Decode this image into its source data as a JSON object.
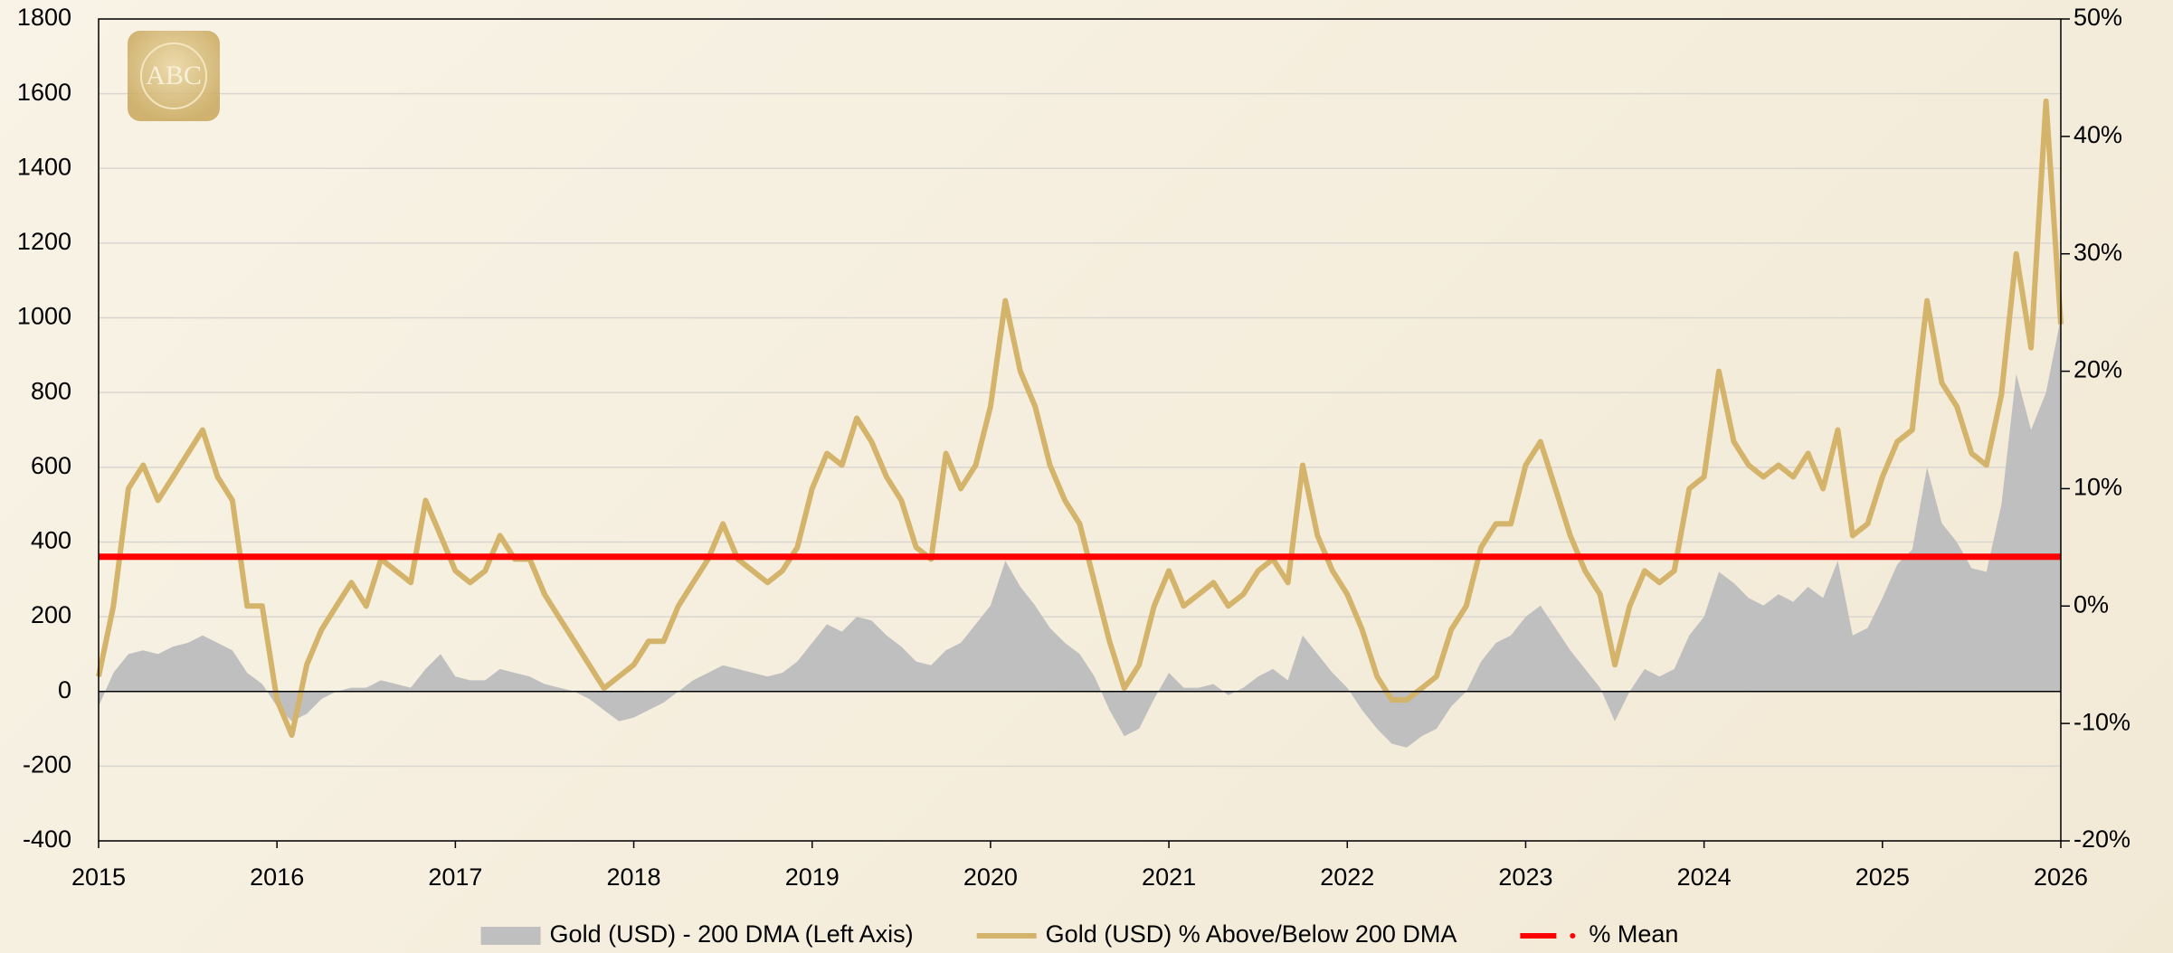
{
  "chart_data": {
    "type": "line",
    "logo_text": "ABC",
    "x": [
      2015,
      2015.083,
      2015.167,
      2015.25,
      2015.333,
      2015.417,
      2015.5,
      2015.583,
      2015.667,
      2015.75,
      2015.833,
      2015.917,
      2016,
      2016.083,
      2016.167,
      2016.25,
      2016.333,
      2016.417,
      2016.5,
      2016.583,
      2016.667,
      2016.75,
      2016.833,
      2016.917,
      2017,
      2017.083,
      2017.167,
      2017.25,
      2017.333,
      2017.417,
      2017.5,
      2017.583,
      2017.667,
      2017.75,
      2017.833,
      2017.917,
      2018,
      2018.083,
      2018.167,
      2018.25,
      2018.333,
      2018.417,
      2018.5,
      2018.583,
      2018.667,
      2018.75,
      2018.833,
      2018.917,
      2019,
      2019.083,
      2019.167,
      2019.25,
      2019.333,
      2019.417,
      2019.5,
      2019.583,
      2019.667,
      2019.75,
      2019.833,
      2019.917,
      2020,
      2020.083,
      2020.167,
      2020.25,
      2020.333,
      2020.417,
      2020.5,
      2020.583,
      2020.667,
      2020.75,
      2020.833,
      2020.917,
      2021,
      2021.083,
      2021.167,
      2021.25,
      2021.333,
      2021.417,
      2021.5,
      2021.583,
      2021.667,
      2021.75,
      2021.833,
      2021.917,
      2022,
      2022.083,
      2022.167,
      2022.25,
      2022.333,
      2022.417,
      2022.5,
      2022.583,
      2022.667,
      2022.75,
      2022.833,
      2022.917,
      2023,
      2023.083,
      2023.167,
      2023.25,
      2023.333,
      2023.417,
      2023.5,
      2023.583,
      2023.667,
      2023.75,
      2023.833,
      2023.917,
      2024,
      2024.083,
      2024.167,
      2024.25,
      2024.333,
      2024.417,
      2024.5,
      2024.583,
      2024.667,
      2024.75,
      2024.833,
      2024.917,
      2025,
      2025.083,
      2025.167,
      2025.25,
      2025.333,
      2025.417,
      2025.5,
      2025.583,
      2025.667,
      2025.75,
      2025.833,
      2025.917,
      2026
    ],
    "series": [
      {
        "name": "Gold (USD) - 200 DMA (Left Axis)",
        "color": "#bfbfbf",
        "style": "area",
        "axis": "y",
        "values": [
          -40,
          50,
          100,
          110,
          100,
          120,
          130,
          150,
          130,
          110,
          50,
          20,
          -40,
          -80,
          -60,
          -20,
          0,
          10,
          10,
          30,
          20,
          10,
          60,
          100,
          40,
          30,
          30,
          60,
          50,
          40,
          20,
          10,
          0,
          -20,
          -50,
          -80,
          -70,
          -50,
          -30,
          0,
          30,
          50,
          70,
          60,
          50,
          40,
          50,
          80,
          130,
          180,
          160,
          200,
          190,
          150,
          120,
          80,
          70,
          110,
          130,
          180,
          230,
          350,
          280,
          230,
          170,
          130,
          100,
          40,
          -50,
          -120,
          -100,
          -20,
          50,
          10,
          10,
          20,
          -10,
          10,
          40,
          60,
          30,
          150,
          100,
          50,
          10,
          -50,
          -100,
          -140,
          -150,
          -120,
          -100,
          -40,
          0,
          80,
          130,
          150,
          200,
          230,
          170,
          110,
          60,
          10,
          -80,
          0,
          60,
          40,
          60,
          150,
          200,
          320,
          290,
          250,
          230,
          260,
          240,
          280,
          250,
          350,
          150,
          170,
          250,
          340,
          380,
          600,
          450,
          400,
          330,
          320,
          500,
          850,
          700,
          800,
          1000
        ]
      },
      {
        "name": "Gold (USD) % Above/Below 200 DMA",
        "color": "#d4b36a",
        "style": "line",
        "axis": "y2",
        "values": [
          -6,
          0,
          10,
          12,
          9,
          11,
          13,
          15,
          11,
          9,
          0,
          0,
          -8,
          -11,
          -5,
          -2,
          0,
          2,
          0,
          4,
          3,
          2,
          9,
          6,
          3,
          2,
          3,
          6,
          4,
          4,
          1,
          -1,
          -3,
          -5,
          -7,
          -6,
          -5,
          -3,
          -3,
          0,
          2,
          4,
          7,
          4,
          3,
          2,
          3,
          5,
          10,
          13,
          12,
          16,
          14,
          11,
          9,
          5,
          4,
          13,
          10,
          12,
          17,
          26,
          20,
          17,
          12,
          9,
          7,
          2,
          -3,
          -7,
          -5,
          0,
          3,
          0,
          1,
          2,
          0,
          1,
          3,
          4,
          2,
          12,
          6,
          3,
          1,
          -2,
          -6,
          -8,
          -8,
          -7,
          -6,
          -2,
          0,
          5,
          7,
          7,
          12,
          14,
          10,
          6,
          3,
          1,
          -5,
          0,
          3,
          2,
          3,
          10,
          11,
          20,
          14,
          12,
          11,
          12,
          11,
          13,
          10,
          15,
          6,
          7,
          11,
          14,
          15,
          26,
          19,
          17,
          13,
          12,
          18,
          30,
          22,
          43,
          24
        ]
      },
      {
        "name": "% Mean",
        "color": "#ff0000",
        "style": "mean",
        "axis": "y2",
        "x": [
          2015,
          2026
        ],
        "values": [
          4.2,
          4.2
        ]
      }
    ],
    "xlim": [
      2015,
      2026
    ],
    "xticks": [
      2015,
      2016,
      2017,
      2018,
      2019,
      2020,
      2021,
      2022,
      2023,
      2024,
      2025,
      2026
    ],
    "ylim": [
      -400,
      1800
    ],
    "yticks": [
      -400,
      -200,
      0,
      200,
      400,
      600,
      800,
      1000,
      1200,
      1400,
      1600,
      1800
    ],
    "y2lim": [
      -20,
      50
    ],
    "y2ticks": [
      {
        "value": -20,
        "label": "-20%"
      },
      {
        "value": -10,
        "label": "-10%"
      },
      {
        "value": 0,
        "label": "0%"
      },
      {
        "value": 10,
        "label": "10%"
      },
      {
        "value": 20,
        "label": "20%"
      },
      {
        "value": 30,
        "label": "30%"
      },
      {
        "value": 40,
        "label": "40%"
      },
      {
        "value": 50,
        "label": "50%"
      }
    ],
    "grid": true,
    "legend": "bottom"
  }
}
